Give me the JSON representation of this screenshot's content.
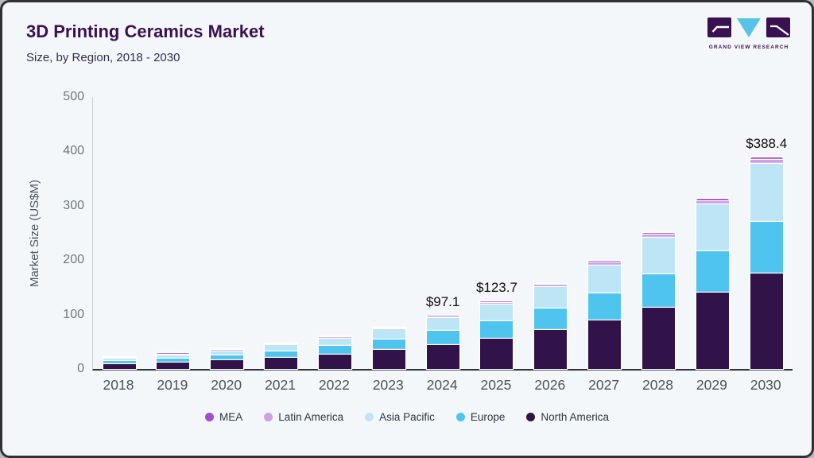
{
  "header": {
    "title": "3D Printing Ceramics Market",
    "subtitle": "Size, by Region, 2018 - 2030",
    "logo_caption": "GRAND VIEW RESEARCH"
  },
  "colors": {
    "background": "#f4f7f9",
    "frame_border": "#2f3036",
    "title_text": "#3a1053",
    "subtitle_text": "#30304a",
    "axis_tick_text": "#6e767d",
    "year_label_text": "#4a535b",
    "y_axis_line": "#c9ced3",
    "x_axis_line": "#2e3338",
    "annotation_text": "#0e0e16",
    "legend_text": "#2c3642",
    "logo_dark_purple": "#3a1150",
    "logo_light_blue": "#56c3e9"
  },
  "chart_data": {
    "type": "bar",
    "stacked": true,
    "title": "3D Printing Ceramics Market",
    "subtitle": "Size, by Region, 2018 - 2030",
    "xlabel": "",
    "ylabel": "Market Size (US$M)",
    "ylim": [
      0,
      500
    ],
    "yticks": [
      0,
      100,
      200,
      300,
      400,
      500
    ],
    "grid": false,
    "legend_position": "bottom",
    "legend_order": [
      "MEA",
      "Latin America",
      "Asia Pacific",
      "Europe",
      "North America"
    ],
    "categories": [
      "2018",
      "2019",
      "2020",
      "2021",
      "2022",
      "2023",
      "2024",
      "2025",
      "2026",
      "2027",
      "2028",
      "2029",
      "2030"
    ],
    "series": [
      {
        "name": "North America",
        "color": "#311349",
        "values": [
          8.9,
          11.9,
          15.7,
          20.6,
          26.8,
          34.5,
          44.1,
          56.2,
          71.0,
          89.8,
          113.1,
          140.6,
          174.8
        ]
      },
      {
        "name": "Europe",
        "color": "#4fc4ee",
        "values": [
          5.2,
          6.9,
          9.0,
          11.7,
          15.0,
          19.1,
          25.9,
          31.4,
          40.0,
          49.5,
          61.0,
          76.5,
          95.8
        ]
      },
      {
        "name": "Asia Pacific",
        "color": "#bde5f6",
        "values": [
          4.6,
          6.1,
          8.2,
          10.9,
          14.4,
          18.9,
          23.0,
          30.6,
          39.5,
          51.0,
          66.5,
          84.9,
          106.6
        ]
      },
      {
        "name": "Latin America",
        "color": "#cfa0e5",
        "values": [
          0.5,
          0.7,
          1.0,
          1.2,
          1.6,
          2.1,
          2.6,
          3.4,
          4.2,
          5.3,
          6.2,
          7.0,
          7.0
        ]
      },
      {
        "name": "MEA",
        "color": "#a14fcc",
        "values": [
          0.4,
          0.5,
          0.6,
          0.8,
          1.0,
          1.3,
          1.5,
          2.1,
          2.4,
          3.1,
          3.6,
          4.0,
          4.2
        ]
      }
    ],
    "totals": [
      19.6,
      26.1,
      34.5,
      45.2,
      58.8,
      75.9,
      97.1,
      123.7,
      157.1,
      198.7,
      250.4,
      313.0,
      388.4
    ],
    "annotations": [
      {
        "category": "2024",
        "label": "$97.1"
      },
      {
        "category": "2025",
        "label": "$123.7"
      },
      {
        "category": "2030",
        "label": "$388.4"
      }
    ]
  }
}
